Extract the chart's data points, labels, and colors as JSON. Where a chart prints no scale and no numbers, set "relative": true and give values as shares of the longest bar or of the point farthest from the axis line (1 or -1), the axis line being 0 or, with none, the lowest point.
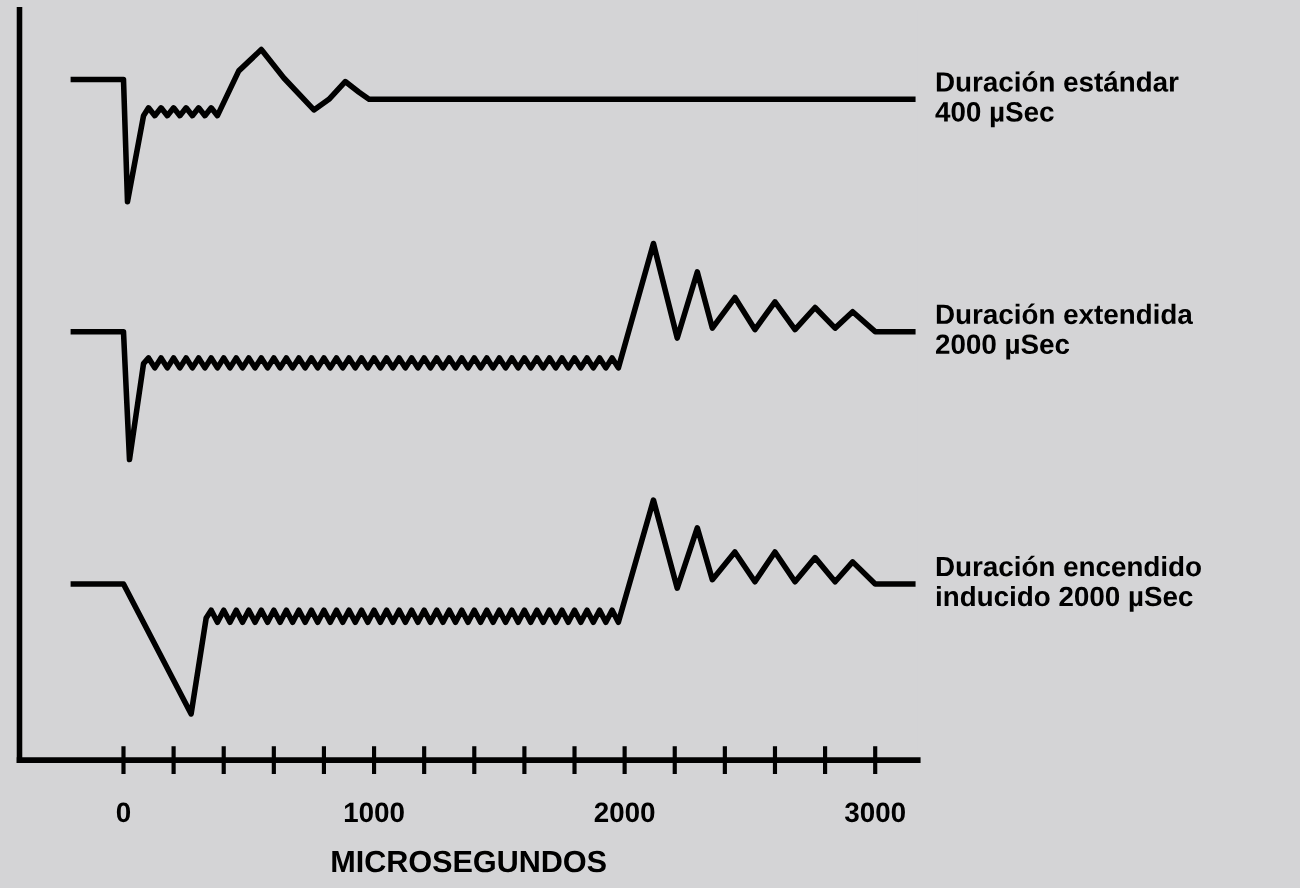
{
  "chart_data": {
    "type": "line",
    "relative": true,
    "xlabel": "MICROSEGUNDOS",
    "xlim": [
      -415,
      3170
    ],
    "xticks": [
      0,
      {
        "value": 200,
        "label": null
      },
      {
        "value": 400,
        "label": null
      },
      {
        "value": 600,
        "label": null
      },
      {
        "value": 800,
        "label": null
      },
      1000,
      {
        "value": 1200,
        "label": null
      },
      {
        "value": 1400,
        "label": null
      },
      {
        "value": 1600,
        "label": null
      },
      {
        "value": 1800,
        "label": null
      },
      2000,
      {
        "value": 2200,
        "label": null
      },
      {
        "value": 2400,
        "label": null
      },
      {
        "value": 2600,
        "label": null
      },
      {
        "value": 2800,
        "label": null
      },
      3000
    ],
    "series": [
      {
        "name": "Duración estándar\n400 µSec",
        "color": "#000000",
        "x": [
          -200,
          0,
          16,
          80,
          100,
          125,
          150,
          175,
          200,
          225,
          250,
          275,
          300,
          325,
          350,
          375,
          460,
          550,
          640,
          760,
          820,
          885,
          940,
          980,
          3150
        ],
        "values": [
          0.958,
          0.958,
          0.786,
          0.907,
          0.918,
          0.907,
          0.918,
          0.907,
          0.918,
          0.907,
          0.918,
          0.907,
          0.918,
          0.907,
          0.918,
          0.907,
          0.97,
          1.0,
          0.96,
          0.915,
          0.93,
          0.955,
          0.94,
          0.93,
          0.93
        ]
      },
      {
        "name": "Duración extendida\n2000 µSec",
        "color": "#000000",
        "x": [
          -200,
          0,
          24,
          80,
          100,
          125,
          150,
          175,
          200,
          225,
          250,
          275,
          300,
          325,
          350,
          375,
          400,
          425,
          450,
          475,
          500,
          525,
          550,
          575,
          600,
          625,
          650,
          675,
          700,
          725,
          750,
          775,
          800,
          825,
          850,
          875,
          900,
          925,
          950,
          975,
          1000,
          1025,
          1050,
          1075,
          1100,
          1125,
          1150,
          1175,
          1200,
          1225,
          1250,
          1275,
          1300,
          1325,
          1350,
          1375,
          1400,
          1425,
          1450,
          1475,
          1500,
          1525,
          1550,
          1575,
          1600,
          1625,
          1650,
          1675,
          1700,
          1725,
          1750,
          1775,
          1800,
          1825,
          1850,
          1875,
          1900,
          1925,
          1950,
          1975,
          2115,
          2210,
          2290,
          2350,
          2440,
          2520,
          2600,
          2680,
          2760,
          2840,
          2910,
          3000,
          3150
        ],
        "values": [
          0.603,
          0.603,
          0.423,
          0.558,
          0.566,
          0.552,
          0.566,
          0.552,
          0.566,
          0.552,
          0.566,
          0.552,
          0.566,
          0.552,
          0.566,
          0.552,
          0.566,
          0.552,
          0.566,
          0.552,
          0.566,
          0.552,
          0.566,
          0.552,
          0.566,
          0.552,
          0.566,
          0.552,
          0.566,
          0.552,
          0.566,
          0.552,
          0.566,
          0.552,
          0.566,
          0.552,
          0.566,
          0.552,
          0.566,
          0.552,
          0.566,
          0.552,
          0.566,
          0.552,
          0.566,
          0.552,
          0.566,
          0.552,
          0.566,
          0.552,
          0.566,
          0.552,
          0.566,
          0.552,
          0.566,
          0.552,
          0.566,
          0.552,
          0.566,
          0.552,
          0.566,
          0.552,
          0.566,
          0.552,
          0.566,
          0.552,
          0.566,
          0.552,
          0.566,
          0.552,
          0.566,
          0.552,
          0.566,
          0.552,
          0.566,
          0.552,
          0.566,
          0.552,
          0.566,
          0.552,
          0.727,
          0.594,
          0.687,
          0.608,
          0.651,
          0.606,
          0.645,
          0.606,
          0.637,
          0.608,
          0.631,
          0.603,
          0.603
        ]
      },
      {
        "name": "Duración encendido\ninducido 2000 µSec",
        "color": "#000000",
        "x": [
          -200,
          0,
          270,
          330,
          350,
          375,
          400,
          425,
          450,
          475,
          500,
          525,
          550,
          575,
          600,
          625,
          650,
          675,
          700,
          725,
          750,
          775,
          800,
          825,
          850,
          875,
          900,
          925,
          950,
          975,
          1000,
          1025,
          1050,
          1075,
          1100,
          1125,
          1150,
          1175,
          1200,
          1225,
          1250,
          1275,
          1300,
          1325,
          1350,
          1375,
          1400,
          1425,
          1450,
          1475,
          1500,
          1525,
          1550,
          1575,
          1600,
          1625,
          1650,
          1675,
          1700,
          1725,
          1750,
          1775,
          1800,
          1825,
          1850,
          1875,
          1900,
          1925,
          1950,
          1975,
          2115,
          2210,
          2290,
          2350,
          2440,
          2520,
          2600,
          2680,
          2760,
          2840,
          2910,
          3000,
          3150
        ],
        "values": [
          0.248,
          0.248,
          0.065,
          0.2,
          0.211,
          0.194,
          0.211,
          0.194,
          0.211,
          0.194,
          0.211,
          0.194,
          0.211,
          0.194,
          0.211,
          0.194,
          0.211,
          0.194,
          0.211,
          0.194,
          0.211,
          0.194,
          0.211,
          0.194,
          0.211,
          0.194,
          0.211,
          0.194,
          0.211,
          0.194,
          0.211,
          0.194,
          0.211,
          0.194,
          0.211,
          0.194,
          0.211,
          0.194,
          0.211,
          0.194,
          0.211,
          0.194,
          0.211,
          0.194,
          0.211,
          0.194,
          0.211,
          0.194,
          0.211,
          0.194,
          0.211,
          0.194,
          0.211,
          0.194,
          0.211,
          0.194,
          0.211,
          0.194,
          0.211,
          0.194,
          0.211,
          0.194,
          0.211,
          0.194,
          0.211,
          0.194,
          0.211,
          0.194,
          0.211,
          0.194,
          0.366,
          0.242,
          0.327,
          0.254,
          0.293,
          0.251,
          0.293,
          0.251,
          0.285,
          0.251,
          0.279,
          0.248,
          0.248
        ]
      }
    ]
  }
}
